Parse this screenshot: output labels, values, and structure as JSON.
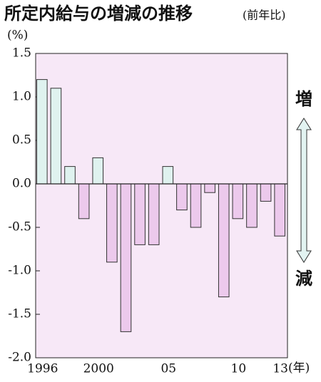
{
  "chart_data": {
    "type": "bar",
    "title": "所定内給与の増減の推移",
    "subtitle": "(前年比)",
    "y_unit": "(%)",
    "x_unit": "(年)",
    "annotations": [
      "増",
      "減"
    ],
    "categories": [
      "1996",
      null,
      null,
      null,
      "2000",
      null,
      null,
      null,
      null,
      "05",
      null,
      null,
      null,
      null,
      "10",
      null,
      null,
      "13"
    ],
    "values": [
      1.2,
      1.1,
      0.2,
      -0.4,
      0.3,
      -0.9,
      -1.7,
      -0.7,
      -0.7,
      0.2,
      -0.3,
      -0.5,
      -0.1,
      -1.3,
      -0.4,
      -0.5,
      -0.2,
      -0.6
    ],
    "colors": {
      "positive": "#dff2ef",
      "negative": "#ecc9ec"
    },
    "ylim": [
      -2.0,
      1.5
    ],
    "yticks": [
      1.5,
      {
        "value": 1.0,
        "label": "1.0"
      },
      0.5,
      {
        "value": 0.0,
        "label": "0.0"
      },
      -0.5,
      {
        "value": -1.0,
        "label": "-1.0"
      },
      -1.5,
      {
        "value": -2.0,
        "label": "-2.0"
      }
    ]
  }
}
